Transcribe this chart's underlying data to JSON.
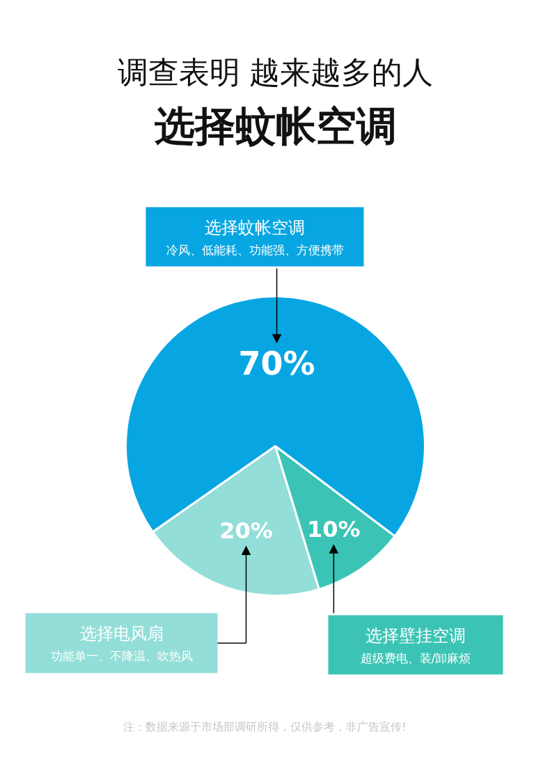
{
  "chart_data": {
    "type": "pie",
    "title": "调查表明 越来越多的人",
    "subtitle": "选择蚊帐空调",
    "categories": [
      "选择蚊帐空调",
      "选择电风扇",
      "选择壁挂空调"
    ],
    "values": [
      70,
      20,
      10
    ],
    "colors": [
      "#07a6e2",
      "#93ded8",
      "#3bc4b5"
    ],
    "value_labels": [
      "70%",
      "20%",
      "10%"
    ],
    "annotations": [
      "冷风、低能耗、功能强、方便携带",
      "功能单一、不降温、吹热风",
      "超级费电、装/卸麻烦",
      "注：数据来源于市场部调研所得，仅供参考，非广告宣传!"
    ]
  }
}
